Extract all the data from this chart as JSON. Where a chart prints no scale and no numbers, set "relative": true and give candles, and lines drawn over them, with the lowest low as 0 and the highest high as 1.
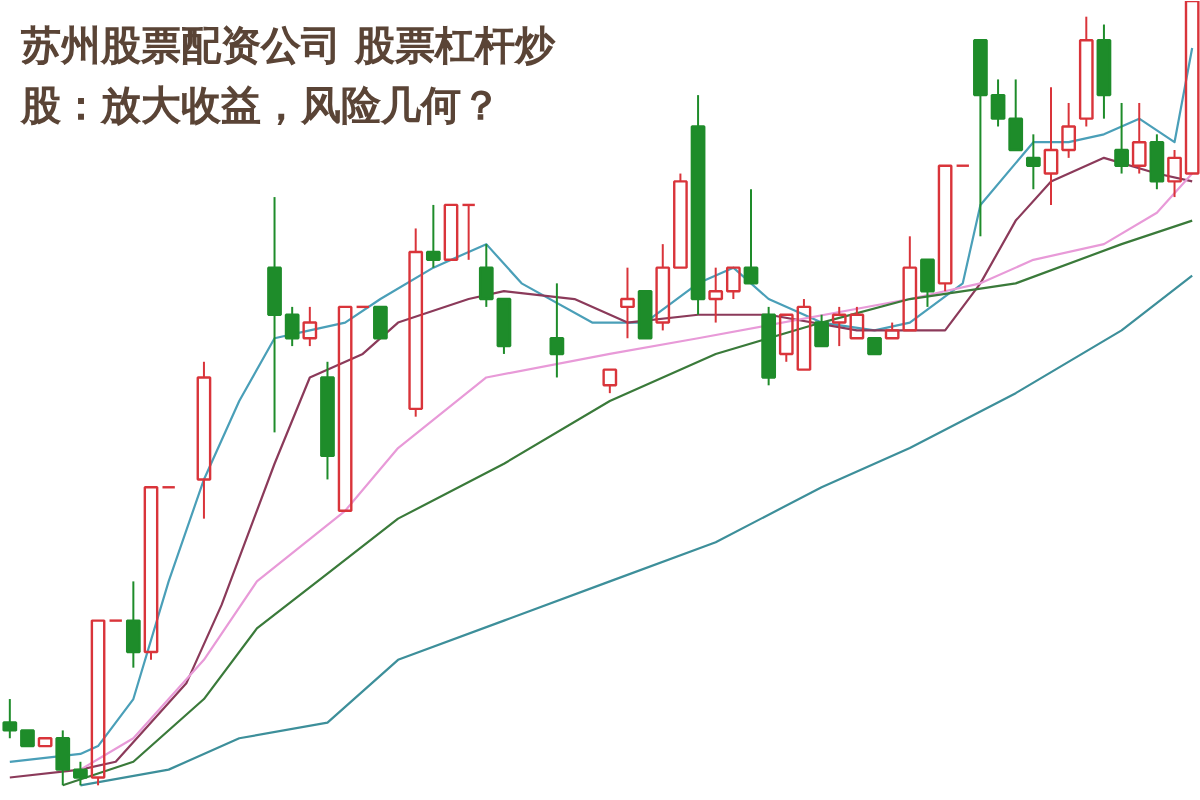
{
  "chart_data": {
    "type": "candlestick",
    "title": "苏州股票配资公司 股票杠杆炒股：放大收益，风险几何？",
    "relative": true,
    "categories": [
      null,
      null,
      null,
      null,
      null,
      null,
      null,
      null,
      null,
      null,
      null,
      null,
      null,
      null,
      null,
      null,
      null,
      null,
      null,
      null,
      null,
      null,
      null,
      null,
      null,
      null,
      null,
      null,
      null,
      null,
      null,
      null,
      null,
      null,
      null,
      null,
      null,
      null,
      null,
      null,
      null,
      null,
      null,
      null,
      null,
      null,
      null,
      null,
      null,
      null,
      null,
      null,
      null,
      null,
      null,
      null,
      null,
      null,
      null,
      null,
      null,
      null,
      null,
      null,
      null,
      null,
      null,
      null
    ],
    "ohlc": [
      [
        0.08,
        0.11,
        0.06,
        0.07
      ],
      [
        0.07,
        0.07,
        0.05,
        0.05
      ],
      [
        0.05,
        0.06,
        0.05,
        0.06
      ],
      [
        0.06,
        0.07,
        0.0,
        0.02
      ],
      [
        0.02,
        0.03,
        0.0,
        0.01
      ],
      [
        0.01,
        0.21,
        0.0,
        0.21
      ],
      [
        0.21,
        0.21,
        0.21,
        0.21
      ],
      [
        0.21,
        0.26,
        0.15,
        0.17
      ],
      [
        0.17,
        0.38,
        0.16,
        0.38
      ],
      [
        0.38,
        0.38,
        0.38,
        0.38
      ],
      null,
      [
        0.39,
        0.54,
        0.34,
        0.52
      ],
      null,
      null,
      null,
      [
        0.66,
        0.75,
        0.45,
        0.6
      ],
      [
        0.6,
        0.61,
        0.56,
        0.57
      ],
      [
        0.57,
        0.61,
        0.56,
        0.59
      ],
      [
        0.52,
        0.54,
        0.39,
        0.42
      ],
      [
        0.35,
        0.61,
        0.35,
        0.61
      ],
      [
        0.61,
        0.61,
        0.61,
        0.61
      ],
      [
        0.61,
        0.61,
        0.57,
        0.57
      ],
      null,
      [
        0.48,
        0.71,
        0.47,
        0.68
      ],
      [
        0.68,
        0.74,
        0.66,
        0.67
      ],
      [
        0.67,
        0.74,
        0.67,
        0.74
      ],
      [
        0.74,
        0.74,
        0.67,
        0.74
      ],
      [
        0.66,
        0.69,
        0.61,
        0.62
      ],
      [
        0.62,
        0.62,
        0.55,
        0.56
      ],
      null,
      null,
      [
        0.57,
        0.64,
        0.52,
        0.55
      ],
      null,
      null,
      [
        0.51,
        0.53,
        0.5,
        0.53
      ],
      [
        0.61,
        0.66,
        0.57,
        0.62
      ],
      [
        0.63,
        0.63,
        0.57,
        0.57
      ],
      [
        0.59,
        0.69,
        0.58,
        0.66
      ],
      [
        0.66,
        0.78,
        0.66,
        0.77
      ],
      [
        0.84,
        0.88,
        0.6,
        0.62
      ],
      [
        0.62,
        0.66,
        0.59,
        0.63
      ],
      [
        0.63,
        0.66,
        0.62,
        0.66
      ],
      [
        0.66,
        0.76,
        0.64,
        0.64
      ],
      [
        0.6,
        0.61,
        0.51,
        0.52
      ],
      [
        0.55,
        0.6,
        0.54,
        0.6
      ],
      [
        0.53,
        0.62,
        0.53,
        0.61
      ],
      [
        0.59,
        0.6,
        0.56,
        0.56
      ],
      [
        0.59,
        0.61,
        0.56,
        0.6
      ],
      [
        0.57,
        0.61,
        0.57,
        0.6
      ],
      [
        0.57,
        0.57,
        0.55,
        0.55
      ],
      [
        0.57,
        0.59,
        0.57,
        0.58
      ],
      [
        0.58,
        0.7,
        0.58,
        0.66
      ],
      [
        0.67,
        0.67,
        0.61,
        0.63
      ],
      [
        0.64,
        0.79,
        0.63,
        0.79
      ],
      [
        0.79,
        0.79,
        0.79,
        0.79
      ],
      [
        0.95,
        0.95,
        0.7,
        0.88
      ],
      [
        0.88,
        0.9,
        0.84,
        0.85
      ],
      [
        0.85,
        0.9,
        0.81,
        0.81
      ],
      [
        0.8,
        0.83,
        0.76,
        0.79
      ],
      [
        0.78,
        0.89,
        0.74,
        0.81
      ],
      [
        0.81,
        0.87,
        0.8,
        0.84
      ],
      [
        0.85,
        0.98,
        0.84,
        0.95
      ],
      [
        0.95,
        0.97,
        0.85,
        0.88
      ],
      [
        0.81,
        0.87,
        0.78,
        0.79
      ],
      [
        0.79,
        0.87,
        0.78,
        0.82
      ],
      [
        0.82,
        0.83,
        0.76,
        0.77
      ],
      [
        0.77,
        0.81,
        0.75,
        0.8
      ],
      [
        0.78,
        1.0,
        0.78,
        1.0
      ]
    ],
    "series": [
      {
        "type": "line",
        "color": "#4a9fb8",
        "values": [
          0.03,
          null,
          null,
          null,
          0.04,
          0.05,
          null,
          0.11,
          null,
          0.26,
          null,
          0.39,
          null,
          0.49,
          null,
          0.57,
          null,
          0.58,
          null,
          0.59,
          null,
          0.62,
          null,
          null,
          0.66,
          null,
          null,
          0.69,
          null,
          0.64,
          null,
          null,
          null,
          0.59,
          null,
          null,
          0.59,
          null,
          null,
          0.64,
          null,
          0.66,
          null,
          0.62,
          null,
          null,
          0.59,
          null,
          null,
          0.58,
          null,
          0.59,
          null,
          null,
          0.64,
          0.74,
          null,
          null,
          0.82,
          null,
          0.82,
          null,
          0.83,
          null,
          0.85,
          null,
          0.82,
          0.94
        ]
      },
      {
        "type": "line",
        "color": "#8b3a5a",
        "values": [
          0.01,
          null,
          null,
          null,
          0.02,
          null,
          0.03,
          null,
          null,
          null,
          0.13,
          null,
          0.23,
          null,
          null,
          0.41,
          null,
          0.52,
          null,
          null,
          0.55,
          null,
          0.59,
          null,
          null,
          null,
          0.62,
          null,
          0.63,
          null,
          null,
          null,
          0.62,
          null,
          null,
          0.59,
          null,
          null,
          null,
          0.6,
          null,
          null,
          null,
          0.6,
          null,
          null,
          null,
          null,
          0.58,
          null,
          null,
          null,
          null,
          0.58,
          null,
          0.64,
          null,
          0.72,
          null,
          0.77,
          null,
          null,
          0.8,
          null,
          null,
          0.78,
          null,
          0.77
        ]
      },
      {
        "type": "line",
        "color": "#e89ad8",
        "values": [
          null,
          null,
          null,
          null,
          0.02,
          null,
          null,
          0.06,
          null,
          null,
          null,
          0.16,
          null,
          null,
          0.26,
          null,
          null,
          null,
          null,
          0.35,
          null,
          null,
          0.43,
          null,
          null,
          null,
          null,
          0.52,
          null,
          null,
          null,
          null,
          null,
          null,
          0.55,
          null,
          null,
          null,
          null,
          0.57,
          null,
          null,
          null,
          null,
          null,
          null,
          null,
          null,
          null,
          null,
          null,
          0.62,
          null,
          null,
          null,
          0.64,
          null,
          null,
          0.67,
          null,
          null,
          null,
          0.69,
          null,
          null,
          0.73,
          null,
          0.78
        ]
      },
      {
        "type": "line",
        "color": "#3a7a3a",
        "values": [
          null,
          null,
          null,
          0.0,
          null,
          null,
          null,
          0.03,
          null,
          null,
          null,
          0.11,
          null,
          null,
          0.2,
          null,
          null,
          null,
          0.27,
          null,
          null,
          null,
          0.34,
          null,
          null,
          null,
          null,
          null,
          0.41,
          null,
          null,
          null,
          null,
          null,
          0.49,
          null,
          null,
          null,
          null,
          null,
          0.55,
          null,
          null,
          null,
          null,
          null,
          0.59,
          null,
          null,
          null,
          null,
          0.62,
          null,
          null,
          null,
          null,
          null,
          0.64,
          null,
          null,
          null,
          null,
          null,
          0.69,
          null,
          null,
          null,
          0.72
        ]
      },
      {
        "type": "line",
        "color": "#3d8f9a",
        "values": [
          null,
          null,
          null,
          null,
          0.0,
          null,
          null,
          null,
          null,
          0.02,
          null,
          null,
          null,
          0.06,
          null,
          null,
          null,
          null,
          0.08,
          null,
          null,
          null,
          0.16,
          null,
          null,
          null,
          null,
          null,
          0.21,
          null,
          null,
          null,
          null,
          null,
          0.26,
          null,
          null,
          null,
          null,
          null,
          0.31,
          null,
          null,
          null,
          null,
          null,
          0.38,
          null,
          null,
          null,
          null,
          0.43,
          null,
          null,
          null,
          null,
          null,
          0.5,
          null,
          null,
          null,
          null,
          null,
          0.58,
          null,
          null,
          null,
          0.65
        ]
      }
    ]
  }
}
